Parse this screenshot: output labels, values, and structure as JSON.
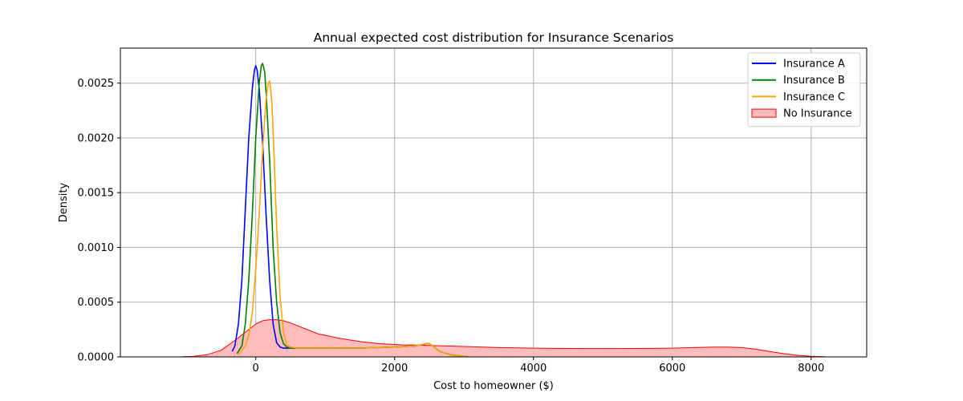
{
  "chart_data": {
    "type": "area",
    "title": "Annual expected cost distribution for Insurance Scenarios",
    "xlabel": "Cost to homeowner ($)",
    "ylabel": "Density",
    "xlim": [
      -1950,
      8800
    ],
    "ylim": [
      0,
      0.00282
    ],
    "x_ticks": [
      0,
      2000,
      4000,
      6000,
      8000
    ],
    "x_tick_labels": [
      "0",
      "2000",
      "4000",
      "6000",
      "8000"
    ],
    "y_ticks": [
      0,
      0.0005,
      0.001,
      0.0015,
      0.002,
      0.0025
    ],
    "y_tick_labels": [
      "0.0000",
      "0.0005",
      "0.0010",
      "0.0015",
      "0.0020",
      "0.0025"
    ],
    "grid": true,
    "legend_position": "top-right",
    "series": [
      {
        "name": "Insurance A",
        "color": "#0000ff",
        "fill": false,
        "x": [
          -340,
          -300,
          -250,
          -200,
          -150,
          -100,
          -50,
          -20,
          0,
          20,
          50,
          100,
          150,
          200,
          250,
          300,
          350,
          400,
          500,
          700,
          1000,
          1500,
          2000,
          2300,
          2450,
          2500,
          2550,
          2650,
          2800,
          3000,
          3050
        ],
        "y": [
          5e-05,
          0.0001,
          0.0003,
          0.0007,
          0.00135,
          0.002,
          0.00245,
          0.00262,
          0.00266,
          0.00262,
          0.00245,
          0.00195,
          0.00128,
          0.0007,
          0.0003,
          0.00013,
          9e-05,
          8e-05,
          8e-05,
          8e-05,
          8e-05,
          8e-05,
          9e-05,
          0.0001,
          0.00012,
          0.00012,
          0.0001,
          5e-05,
          2e-05,
          5e-06,
          0.0
        ]
      },
      {
        "name": "Insurance B",
        "color": "#008000",
        "fill": false,
        "x": [
          -270,
          -200,
          -150,
          -100,
          -50,
          0,
          50,
          80,
          100,
          130,
          150,
          200,
          250,
          300,
          350,
          400,
          450,
          500,
          700,
          1000,
          1500,
          2000,
          2300,
          2450,
          2500,
          2550,
          2650,
          2800,
          3000,
          3050
        ],
        "y": [
          3e-05,
          0.0001,
          0.0003,
          0.0007,
          0.0013,
          0.002,
          0.0025,
          0.00266,
          0.00268,
          0.0026,
          0.0024,
          0.0018,
          0.001,
          0.0005,
          0.00022,
          0.00012,
          9e-05,
          8e-05,
          8e-05,
          8e-05,
          8e-05,
          9e-05,
          0.0001,
          0.00012,
          0.00012,
          0.0001,
          5e-05,
          2e-05,
          5e-06,
          0.0
        ]
      },
      {
        "name": "Insurance C",
        "color": "#ffa500",
        "fill": false,
        "x": [
          -250,
          -150,
          -100,
          -50,
          0,
          50,
          100,
          150,
          180,
          200,
          230,
          260,
          300,
          350,
          400,
          450,
          500,
          600,
          700,
          1000,
          1500,
          2000,
          2300,
          2450,
          2500,
          2550,
          2650,
          2800,
          3000,
          3050
        ],
        "y": [
          2e-05,
          0.0001,
          0.0002,
          0.0004,
          0.0008,
          0.0013,
          0.0019,
          0.00237,
          0.0025,
          0.00252,
          0.00235,
          0.0019,
          0.0012,
          0.00055,
          0.00022,
          0.00011,
          9e-05,
          8e-05,
          8e-05,
          8e-05,
          8e-05,
          9e-05,
          0.0001,
          0.00012,
          0.00012,
          0.0001,
          5e-05,
          2e-05,
          5e-06,
          0.0
        ]
      },
      {
        "name": "No Insurance",
        "color": "#ff0000",
        "fill": true,
        "fill_color": "#ffbcbc",
        "x": [
          -1100,
          -900,
          -700,
          -500,
          -300,
          -100,
          0,
          100,
          200,
          300,
          400,
          500,
          700,
          900,
          1200,
          1500,
          1800,
          2100,
          2300,
          2500,
          2700,
          3000,
          3500,
          4000,
          4500,
          5000,
          5500,
          6000,
          6300,
          6600,
          6800,
          7000,
          7200,
          7400,
          7600,
          7800,
          8000,
          8200,
          8300
        ],
        "y": [
          0.0,
          5e-06,
          2e-05,
          6e-05,
          0.00015,
          0.00025,
          0.0003,
          0.00033,
          0.00034,
          0.00034,
          0.00033,
          0.00031,
          0.00026,
          0.00021,
          0.00017,
          0.00014,
          0.00012,
          0.00011,
          0.000108,
          0.000105,
          0.0001,
          9.5e-05,
          8.5e-05,
          8e-05,
          7.7e-05,
          7.6e-05,
          7.7e-05,
          8e-05,
          8.5e-05,
          9e-05,
          9e-05,
          8.5e-05,
          7e-05,
          5e-05,
          3e-05,
          1.5e-05,
          6e-06,
          1e-06,
          0.0
        ]
      }
    ]
  }
}
